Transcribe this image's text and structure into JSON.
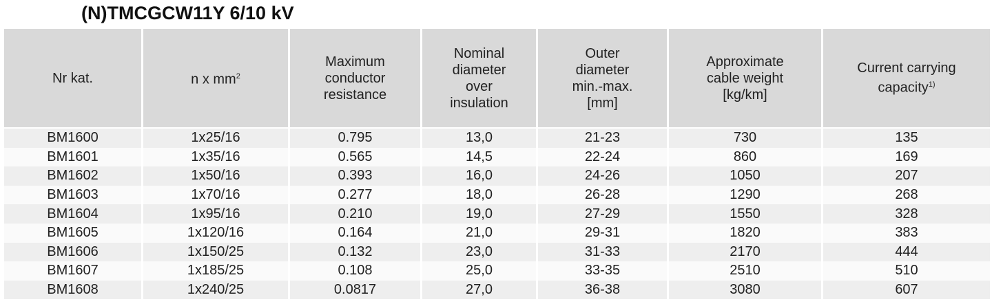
{
  "title": "(N)TMCGCW11Y 6/10 kV",
  "table": {
    "header": [
      {
        "lines": [
          "Nr kat."
        ]
      },
      {
        "lines": [
          "n x mm"
        ],
        "sup": "2"
      },
      {
        "lines": [
          "Maximum",
          "conductor",
          "resistance"
        ]
      },
      {
        "lines": [
          "Nominal",
          "diameter",
          "over",
          "insulation"
        ]
      },
      {
        "lines": [
          "Outer",
          "diameter",
          "min.-max.",
          "[mm]"
        ]
      },
      {
        "lines": [
          "Approximate",
          "cable weight",
          "[kg/km]"
        ]
      },
      {
        "lines": [
          "Current carrying",
          "capacity"
        ],
        "sup": "1)"
      }
    ],
    "rows": [
      [
        "BM1600",
        "1x25/16",
        "0.795",
        "13,0",
        "21-23",
        "730",
        "135"
      ],
      [
        "BM1601",
        "1x35/16",
        "0.565",
        "14,5",
        "22-24",
        "860",
        "169"
      ],
      [
        "BM1602",
        "1x50/16",
        "0.393",
        "16,0",
        "24-26",
        "1050",
        "207"
      ],
      [
        "BM1603",
        "1x70/16",
        "0.277",
        "18,0",
        "26-28",
        "1290",
        "268"
      ],
      [
        "BM1604",
        "1x95/16",
        "0.210",
        "19,0",
        "27-29",
        "1550",
        "328"
      ],
      [
        "BM1605",
        "1x120/16",
        "0.164",
        "21,0",
        "29-31",
        "1820",
        "383"
      ],
      [
        "BM1606",
        "1x150/25",
        "0.132",
        "23,0",
        "31-33",
        "2170",
        "444"
      ],
      [
        "BM1607",
        "1x185/25",
        "0.108",
        "25,0",
        "33-35",
        "2510",
        "510"
      ],
      [
        "BM1608",
        "1x240/25",
        "0.0817",
        "27,0",
        "36-38",
        "3080",
        "607"
      ]
    ]
  }
}
